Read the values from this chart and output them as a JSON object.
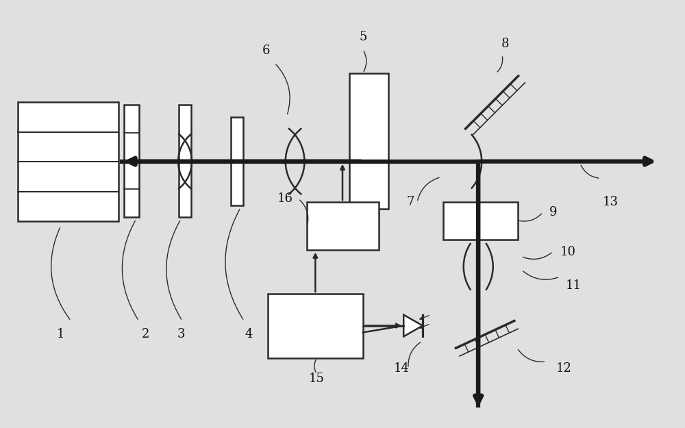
{
  "bg_color": "#e0e0e0",
  "line_color": "#2a2a2a",
  "beam_color": "#1a1a1a",
  "beam_lw": 4.5,
  "thin_lw": 1.8,
  "fig_width": 10,
  "fig_height": 6.25
}
